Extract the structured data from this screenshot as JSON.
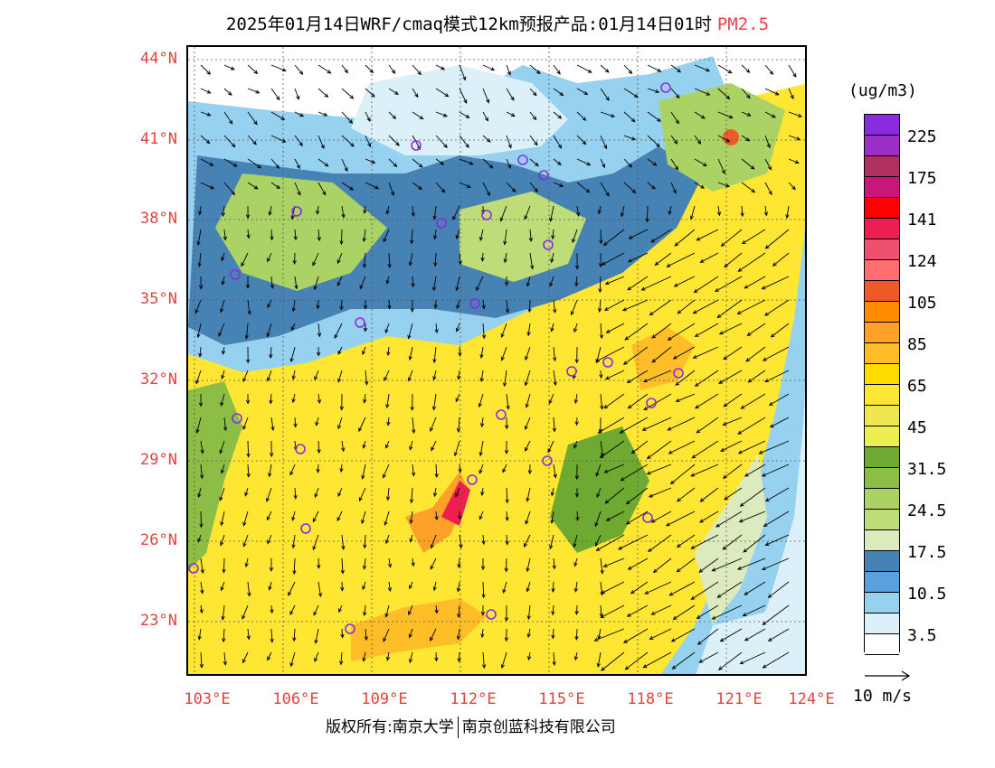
{
  "title": {
    "main": "2025年01月14日WRF/cmaq模式12km预报产品:01月14日01时",
    "product": "PM2.5",
    "product_color": "#e8424a"
  },
  "map": {
    "lat_labels": [
      "44°N",
      "41°N",
      "38°N",
      "35°N",
      "32°N",
      "29°N",
      "26°N",
      "23°N"
    ],
    "lon_labels": [
      "103°E",
      "106°E",
      "109°E",
      "112°E",
      "115°E",
      "118°E",
      "121°E",
      "124°E"
    ],
    "axis_label_color": "#e0443e",
    "marker_color": "#8a2be2"
  },
  "legend": {
    "unit": "(ug/m3)",
    "bins": [
      {
        "color": "#8a2be2"
      },
      {
        "color": "#9b30c8"
      },
      {
        "color": "#b03060"
      },
      {
        "color": "#c8167a"
      },
      {
        "color": "#ff0000"
      },
      {
        "color": "#ee1e50"
      },
      {
        "color": "#f0506e"
      },
      {
        "color": "#ff6e6e"
      },
      {
        "color": "#f05a28"
      },
      {
        "color": "#ff8c00"
      },
      {
        "color": "#ffa028"
      },
      {
        "color": "#ffbe28"
      },
      {
        "color": "#ffdc00"
      },
      {
        "color": "#ffe632"
      },
      {
        "color": "#f0e650"
      },
      {
        "color": "#ebf050"
      },
      {
        "color": "#6eaa32"
      },
      {
        "color": "#8cbe46"
      },
      {
        "color": "#aad264"
      },
      {
        "color": "#bedc78"
      },
      {
        "color": "#dcebbe"
      },
      {
        "color": "#4682b4"
      },
      {
        "color": "#5aa0dc"
      },
      {
        "color": "#96d2f0"
      },
      {
        "color": "#dcf0fa"
      },
      {
        "color": "#ffffff"
      }
    ],
    "labels": [
      "225",
      "175",
      "141",
      "124",
      "105",
      "85",
      "65",
      "45",
      "31.5",
      "24.5",
      "17.5",
      "10.5",
      "3.5"
    ]
  },
  "wind_reference": {
    "label": "10 m/s"
  },
  "footer": {
    "left": "版权所有:南京大学",
    "right": "南京创蓝科技有限公司"
  }
}
